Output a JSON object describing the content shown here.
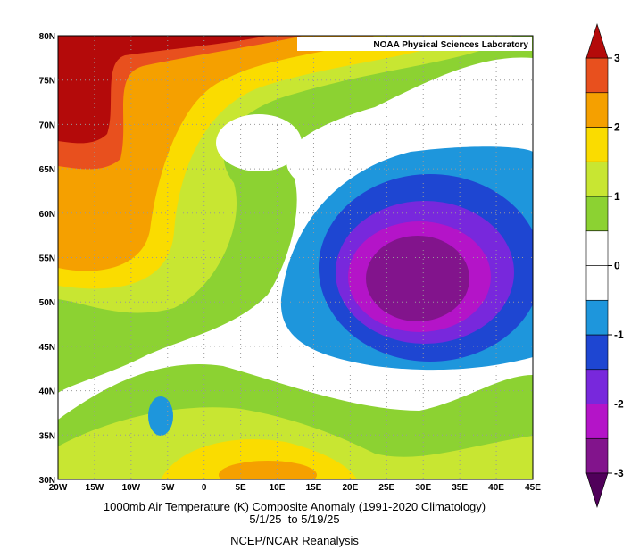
{
  "map": {
    "source_label": "NOAA Physical Sciences Laboratory",
    "lat_labels": [
      "80N",
      "75N",
      "70N",
      "65N",
      "60N",
      "55N",
      "50N",
      "45N",
      "40N",
      "35N",
      "30N"
    ],
    "lon_labels": [
      "20W",
      "15W",
      "10W",
      "5W",
      "0",
      "5E",
      "10E",
      "15E",
      "20E",
      "25E",
      "30E",
      "35E",
      "40E",
      "45E"
    ],
    "title": "1000mb Air Temperature (K) Composite Anomaly (1991-2020 Climatology)",
    "date_range": "5/1/25  to 5/19/25",
    "dataset": "NCEP/NCAR Reanalysis",
    "colorbar": {
      "lim": [
        -3,
        3
      ],
      "ticks": [
        3,
        2,
        1,
        0,
        -1,
        -2,
        -3
      ],
      "under_color": "#50005a",
      "over_color": "#b40a0a",
      "colors": [
        "#82148c",
        "#b414c8",
        "#7828dc",
        "#1e46d2",
        "#1e96dc",
        "#ffffff",
        "#ffffff",
        "#8cd232",
        "#c8e632",
        "#fadc00",
        "#f5a000",
        "#e8501e"
      ]
    }
  }
}
